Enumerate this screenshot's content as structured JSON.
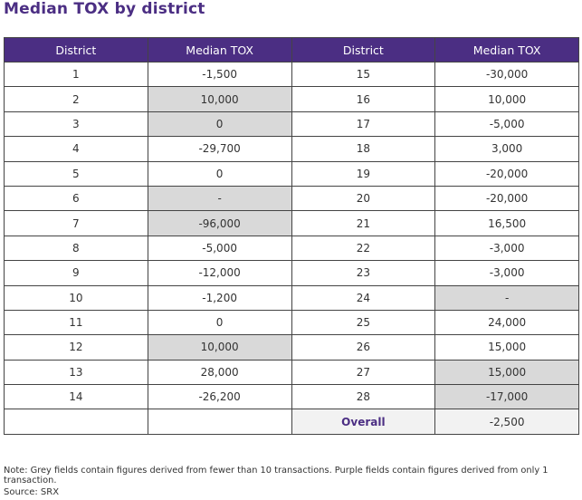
{
  "title": "Median TOX by district",
  "headers": [
    "District",
    "Median TOX",
    "District",
    "Median TOX"
  ],
  "colors": {
    "header": "#4b2e83",
    "grey_field": "#d9d9d9",
    "overall_bg": "#f2f2f2"
  },
  "chart_data": {
    "type": "table",
    "title": "Median TOX by district",
    "columns": [
      "District",
      "Median TOX"
    ],
    "rows": [
      {
        "left": {
          "district": "1",
          "value": "-1,500",
          "grey": false
        },
        "right": {
          "district": "15",
          "value": "-30,000",
          "grey": false
        }
      },
      {
        "left": {
          "district": "2",
          "value": "10,000",
          "grey": true
        },
        "right": {
          "district": "16",
          "value": "10,000",
          "grey": false
        }
      },
      {
        "left": {
          "district": "3",
          "value": "0",
          "grey": true
        },
        "right": {
          "district": "17",
          "value": "-5,000",
          "grey": false
        }
      },
      {
        "left": {
          "district": "4",
          "value": "-29,700",
          "grey": false
        },
        "right": {
          "district": "18",
          "value": "3,000",
          "grey": false
        }
      },
      {
        "left": {
          "district": "5",
          "value": "0",
          "grey": false
        },
        "right": {
          "district": "19",
          "value": "-20,000",
          "grey": false
        }
      },
      {
        "left": {
          "district": "6",
          "value": "-",
          "grey": true
        },
        "right": {
          "district": "20",
          "value": "-20,000",
          "grey": false
        }
      },
      {
        "left": {
          "district": "7",
          "value": "-96,000",
          "grey": true
        },
        "right": {
          "district": "21",
          "value": "16,500",
          "grey": false
        }
      },
      {
        "left": {
          "district": "8",
          "value": "-5,000",
          "grey": false
        },
        "right": {
          "district": "22",
          "value": "-3,000",
          "grey": false
        }
      },
      {
        "left": {
          "district": "9",
          "value": "-12,000",
          "grey": false
        },
        "right": {
          "district": "23",
          "value": "-3,000",
          "grey": false
        }
      },
      {
        "left": {
          "district": "10",
          "value": "-1,200",
          "grey": false
        },
        "right": {
          "district": "24",
          "value": "-",
          "grey": true
        }
      },
      {
        "left": {
          "district": "11",
          "value": "0",
          "grey": false
        },
        "right": {
          "district": "25",
          "value": "24,000",
          "grey": false
        }
      },
      {
        "left": {
          "district": "12",
          "value": "10,000",
          "grey": true
        },
        "right": {
          "district": "26",
          "value": "15,000",
          "grey": false
        }
      },
      {
        "left": {
          "district": "13",
          "value": "28,000",
          "grey": false
        },
        "right": {
          "district": "27",
          "value": "15,000",
          "grey": true
        }
      },
      {
        "left": {
          "district": "14",
          "value": "-26,200",
          "grey": false
        },
        "right": {
          "district": "28",
          "value": "-17,000",
          "grey": true
        }
      }
    ],
    "overall": {
      "label": "Overall",
      "value": "-2,500"
    }
  },
  "note": "Note: Grey fields contain figures derived from fewer than 10 transactions. Purple fields contain figures derived from only 1 transaction.",
  "source": "Source: SRX"
}
